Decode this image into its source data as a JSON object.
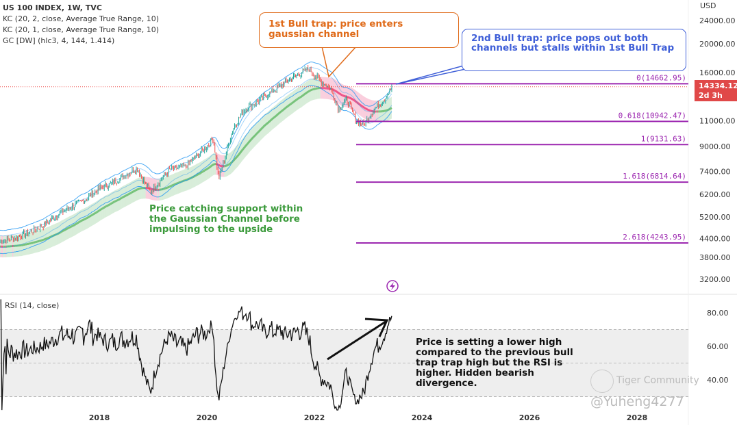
{
  "legend": {
    "title": "US 100 INDEX, 1W, TVC",
    "indicators": [
      "KC (20, 2, close, Average True Range, 10)",
      "KC (20, 1, close, Average True Range, 10)",
      "GC [DW] (hlc3, 4, 144, 1.414)"
    ]
  },
  "price_tag": {
    "value": "14334.12",
    "countdown": "2d 3h"
  },
  "annotations": {
    "bull_trap_1": "1st Bull trap: price enters gaussian channel",
    "bull_trap_2": "2nd Bull trap: price pops out both channels but stalls within 1st Bull Trap",
    "support": "Price catching support within the Gaussian Channel before impulsing to the upside",
    "divergence": "Price is setting a lower high compared to the previous bull trap trap high but the RSI is higher.  Hidden bearish divergence."
  },
  "rsi_label": "RSI (14, close)",
  "watermark": {
    "brand": "Tiger Community",
    "user": "@Yuheng4277"
  },
  "colors": {
    "up": "#26a69a",
    "down": "#ef5350",
    "fib": "#9c27b0",
    "kc": "#2196f3",
    "gc_up": "#4caf50",
    "gc_down": "#e91e63",
    "orange": "#e06b1a",
    "blue": "#3f5fd8",
    "green_text": "#3b9a3b"
  },
  "chart_data": {
    "type": "candlestick",
    "title": "US 100 INDEX, 1W, TVC",
    "ylabel": "USD",
    "yscale": "log",
    "ylim": [
      3000,
      26000
    ],
    "y_ticks": [
      "24000.00",
      "20000.00",
      "16000.00",
      "11000.00",
      "9000.00",
      "7400.00",
      "6200.00",
      "5200.00",
      "4400.00",
      "3800.00",
      "3200.00"
    ],
    "y_tick_values": [
      24000,
      20000,
      16000,
      11000,
      9000,
      7400,
      6200,
      5200,
      4400,
      3800,
      3200
    ],
    "x_ticks": [
      "2018",
      "2020",
      "2022",
      "2024",
      "2026",
      "2028"
    ],
    "x_tick_values": [
      2018,
      2020,
      2022,
      2024,
      2026,
      2028
    ],
    "xlim": [
      2016.15,
      2029.05
    ],
    "price_keypoints": [
      [
        2016.15,
        4300
      ],
      [
        2016.5,
        4450
      ],
      [
        2016.9,
        4800
      ],
      [
        2017.3,
        5400
      ],
      [
        2017.7,
        5900
      ],
      [
        2018.0,
        6500
      ],
      [
        2018.2,
        6700
      ],
      [
        2018.7,
        7600
      ],
      [
        2018.95,
        6300
      ],
      [
        2019.3,
        7500
      ],
      [
        2019.6,
        7700
      ],
      [
        2020.0,
        9000
      ],
      [
        2020.12,
        9600
      ],
      [
        2020.22,
        7000
      ],
      [
        2020.5,
        10500
      ],
      [
        2020.7,
        12000
      ],
      [
        2021.0,
        13000
      ],
      [
        2021.5,
        15000
      ],
      [
        2021.9,
        16500
      ],
      [
        2022.1,
        15000
      ],
      [
        2022.3,
        14200
      ],
      [
        2022.45,
        12000
      ],
      [
        2022.6,
        13000
      ],
      [
        2022.78,
        11000
      ],
      [
        2022.92,
        10700
      ],
      [
        2023.1,
        12000
      ],
      [
        2023.3,
        13000
      ],
      [
        2023.45,
        14334
      ]
    ],
    "fib_levels": [
      {
        "label": "0(14662.95)",
        "value": 14662.95
      },
      {
        "label": "0.618(10942.47)",
        "value": 10942.47
      },
      {
        "label": "1(9131.63)",
        "value": 9131.63
      },
      {
        "label": "1.618(6814.64)",
        "value": 6814.64
      },
      {
        "label": "2.618(4243.95)",
        "value": 4243.95
      }
    ],
    "rsi": {
      "period": 14,
      "y_ticks": [
        "80.00",
        "60.00",
        "40.00"
      ],
      "y_tick_values": [
        80,
        60,
        40
      ],
      "bands": [
        30,
        50,
        70
      ]
    }
  }
}
